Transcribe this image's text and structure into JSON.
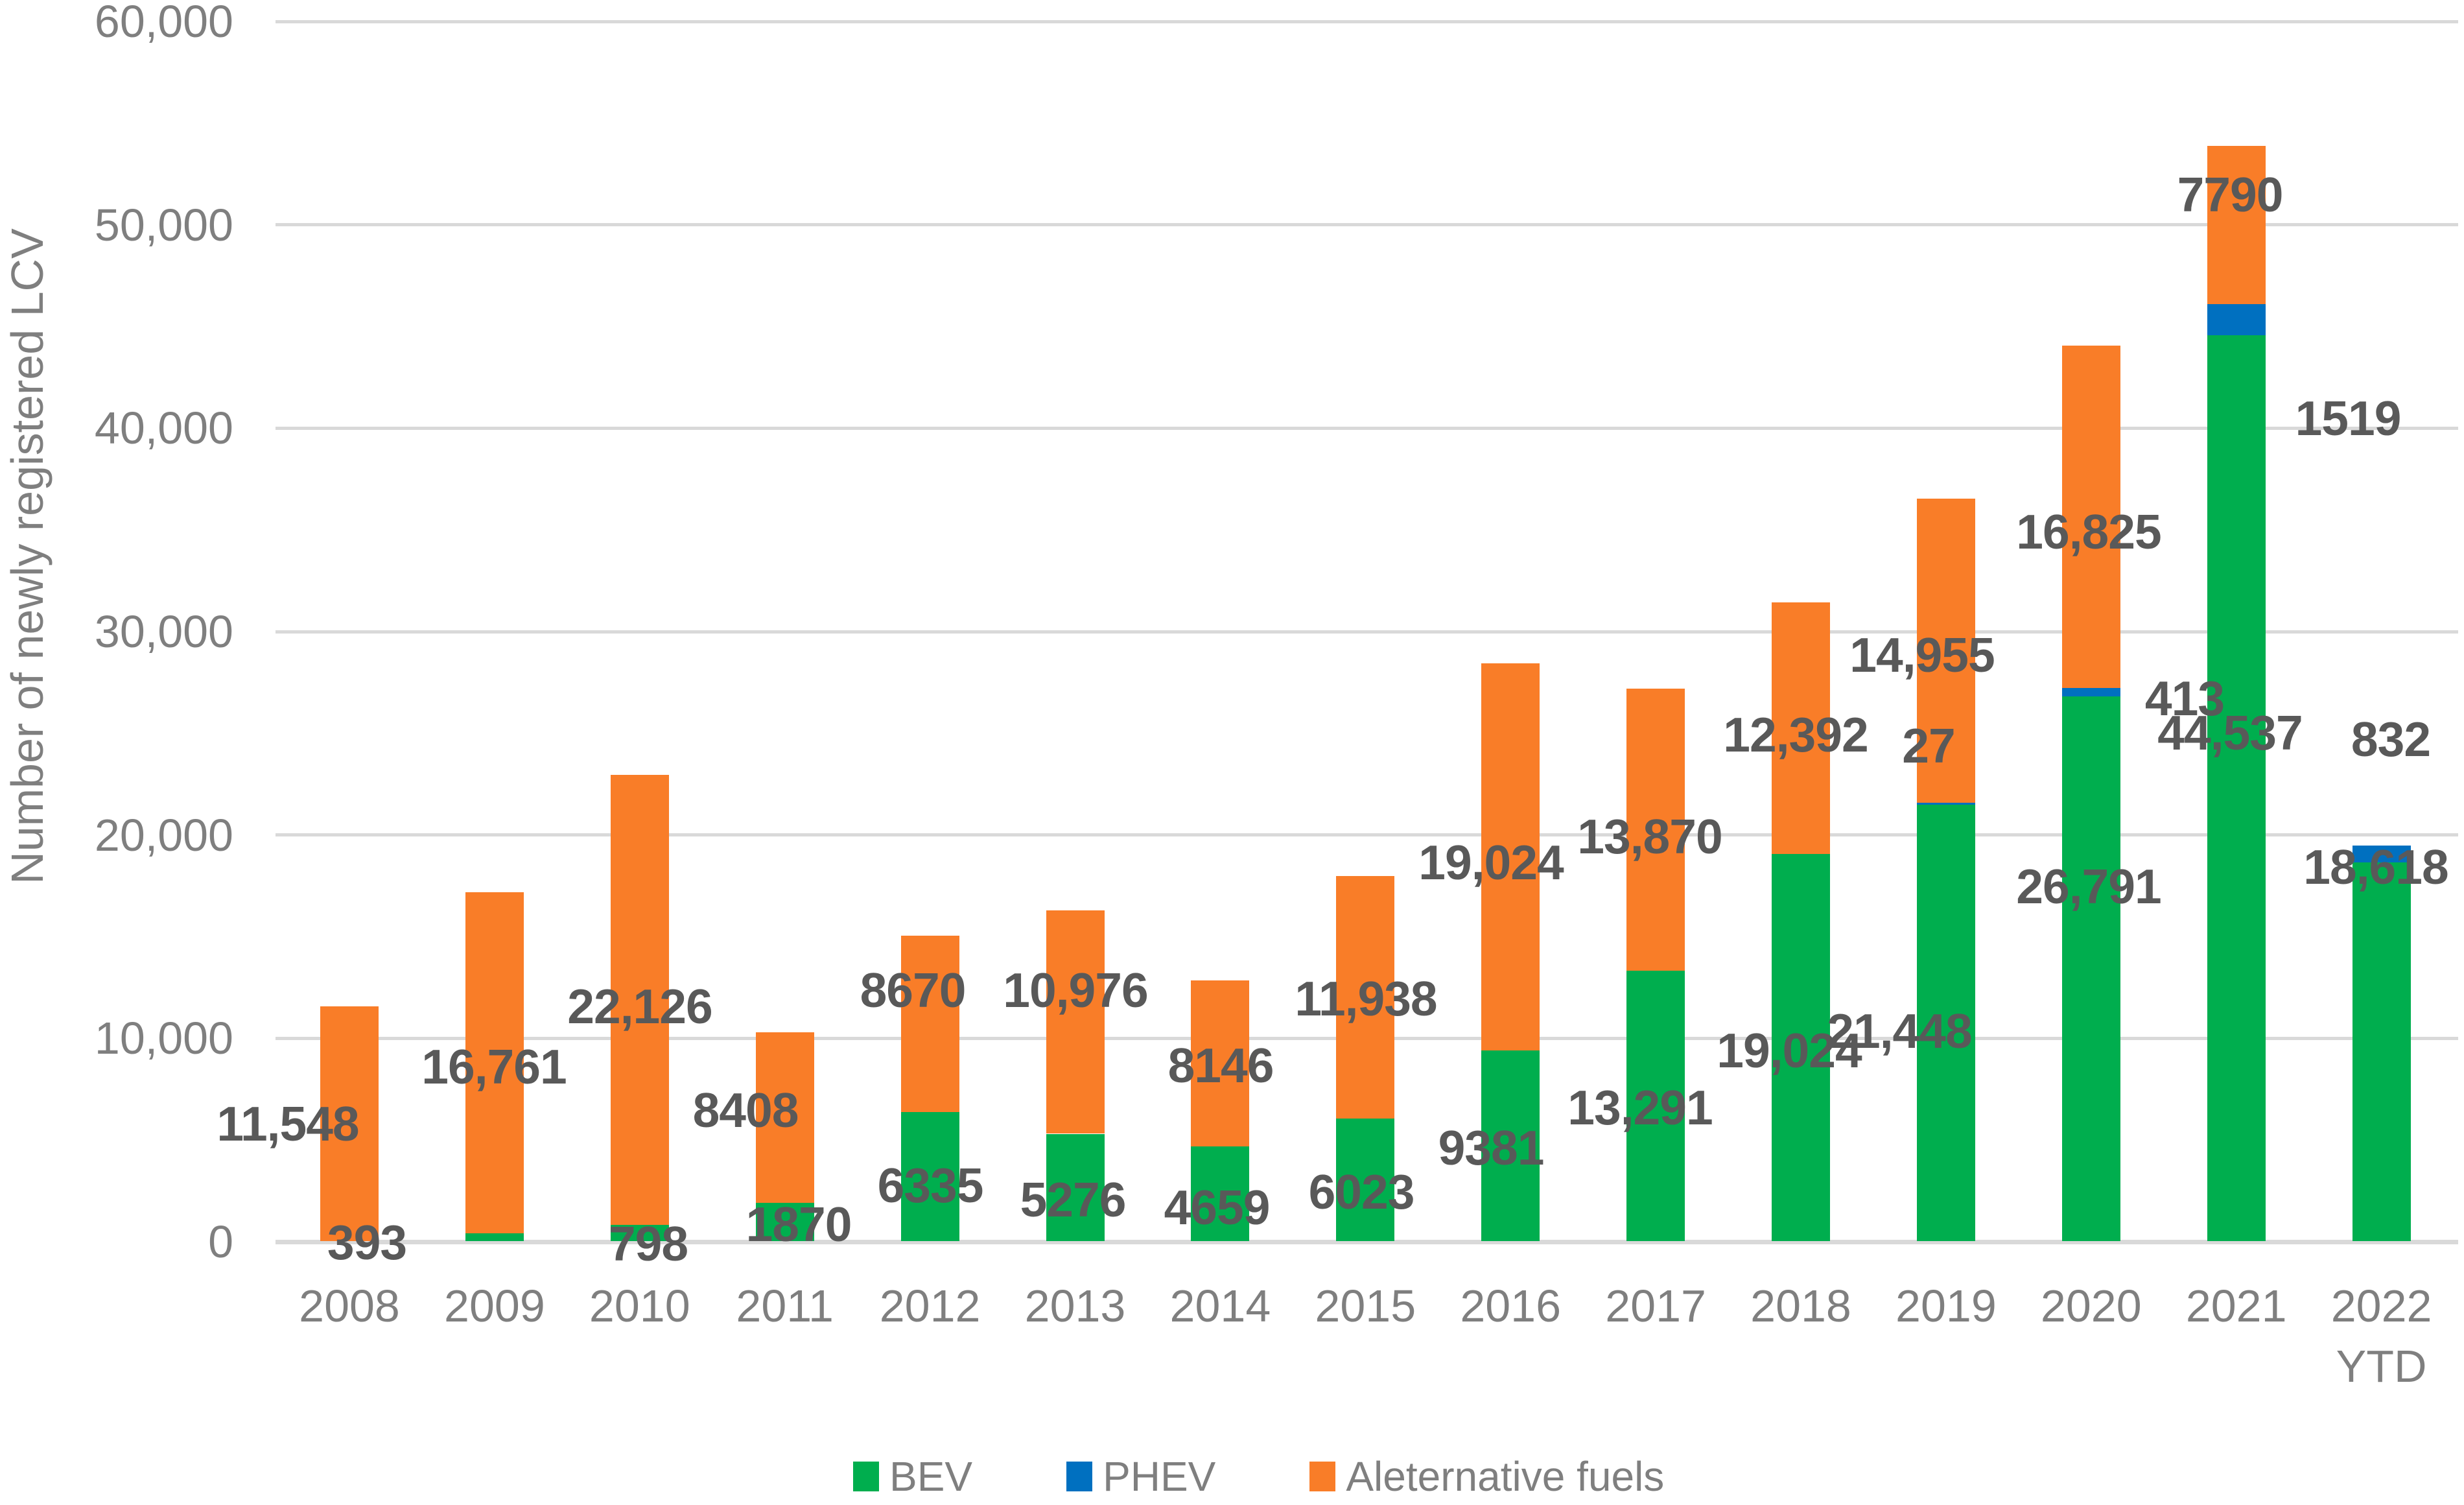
{
  "chart_data": {
    "type": "bar",
    "stacked": true,
    "title": "",
    "xlabel": "",
    "ylabel": "Number of newly registered LCV",
    "ylim": [
      0,
      60000
    ],
    "ytick_step": 10000,
    "yticks_display": [
      "0",
      "10,000",
      "20,000",
      "30,000",
      "40,000",
      "50,000",
      "60,000"
    ],
    "grid": true,
    "legend_position": "bottom",
    "categories": [
      "2008",
      "2009",
      "2010",
      "2011",
      "2012",
      "2013",
      "2014",
      "2015",
      "2016",
      "2017",
      "2018",
      "2019",
      "2020",
      "2021",
      "2022 YTD"
    ],
    "series": [
      {
        "name": "BEV",
        "color": "#00AE4E",
        "values": [
          0,
          393,
          798,
          1870,
          6335,
          5276,
          4659,
          6023,
          9381,
          13291,
          19024,
          21448,
          26791,
          44537,
          18618
        ],
        "labels": [
          "",
          "393",
          "798",
          "1870",
          "6335",
          "5276",
          "4659",
          "6023",
          "9381",
          "13,291",
          "19,024",
          "21,448",
          "26,791",
          "44,537",
          "18,618"
        ]
      },
      {
        "name": "PHEV",
        "color": "#0070C0",
        "values": [
          0,
          0,
          0,
          0,
          0,
          0,
          0,
          0,
          0,
          0,
          0,
          27,
          413,
          1519,
          832
        ],
        "labels": [
          "",
          "",
          "",
          "",
          "",
          "",
          "",
          "",
          "",
          "",
          "",
          "27",
          "413",
          "1519",
          "832"
        ]
      },
      {
        "name": "Aleternative fuels",
        "color": "#F97D28",
        "values": [
          11548,
          16761,
          22126,
          8408,
          8670,
          10976,
          8146,
          11938,
          19024,
          13870,
          12392,
          14955,
          16825,
          7790,
          0
        ],
        "labels": [
          "11,548",
          "16,761",
          "22,126",
          "8408",
          "8670",
          "10,976",
          "8146",
          "11,938",
          "19,024",
          "13,870",
          "12,392",
          "14,955",
          "16,825",
          "7790",
          ""
        ]
      }
    ]
  }
}
